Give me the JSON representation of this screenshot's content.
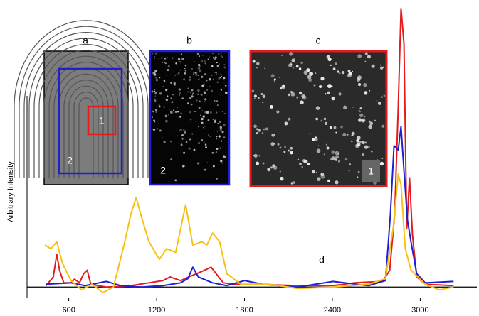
{
  "chart_data": {
    "type": "line",
    "y_label": "Arbitrary Intensity",
    "annotations": [
      "a",
      "b",
      "c",
      "d",
      "1",
      "2",
      "2",
      "1"
    ],
    "xlim": [
      315,
      3387
    ],
    "ylim": [
      -4,
      100
    ],
    "xticks": [
      600,
      1200,
      1800,
      2400,
      3000
    ],
    "series": [
      {
        "color": "#e41a1c",
        "x": [
          445,
          494,
          518,
          537,
          566,
          615,
          639,
          673,
          702,
          726,
          750,
          856,
          1002,
          1147,
          1243,
          1292,
          1364,
          1437,
          1510,
          1572,
          1606,
          1655,
          1727,
          1969,
          2163,
          2405,
          2550,
          2743,
          2792,
          2826,
          2850,
          2869,
          2889,
          2908,
          2927,
          2947,
          2976,
          3034,
          3228
        ],
        "values": [
          0.5,
          3.6,
          11.7,
          6,
          1.5,
          1.5,
          2.8,
          1.5,
          4.8,
          6,
          1,
          0,
          0.3,
          1.5,
          2.3,
          3.6,
          2.3,
          4,
          5.6,
          7.1,
          4.8,
          1.5,
          1,
          0.8,
          0.5,
          0.5,
          1.5,
          2,
          6,
          26.4,
          64.5,
          99.5,
          87,
          21,
          39,
          18.8,
          3.6,
          1,
          0.5
        ]
      },
      {
        "color": "#1f1fd0",
        "x": [
          445,
          615,
          711,
          856,
          953,
          1098,
          1243,
          1364,
          1413,
          1447,
          1485,
          1582,
          1679,
          1800,
          1921,
          2163,
          2405,
          2647,
          2763,
          2797,
          2821,
          2850,
          2869,
          2889,
          2913,
          2937,
          2976,
          3034,
          3228
        ],
        "values": [
          1,
          1.5,
          0.5,
          2,
          0.5,
          0,
          0.5,
          1.5,
          3,
          7.1,
          3.6,
          1.5,
          0.5,
          2.3,
          1,
          0,
          2,
          0.5,
          2.3,
          26.4,
          50.5,
          49,
          57.4,
          41.6,
          23.9,
          16.2,
          4.8,
          1.5,
          2
        ]
      },
      {
        "color": "#f5c211",
        "x": [
          436,
          479,
          518,
          556,
          615,
          687,
          760,
          832,
          905,
          977,
          1026,
          1060,
          1089,
          1147,
          1219,
          1268,
          1330,
          1398,
          1447,
          1510,
          1543,
          1582,
          1630,
          1679,
          1776,
          1969,
          2163,
          2405,
          2647,
          2763,
          2816,
          2850,
          2869,
          2898,
          2937,
          3034,
          3131,
          3228
        ],
        "values": [
          15,
          13.7,
          16.2,
          8.6,
          2.3,
          -1,
          1,
          -2,
          0,
          15,
          26.4,
          32,
          26.4,
          16.2,
          9.9,
          13.7,
          12.4,
          29.4,
          15,
          16.2,
          15,
          19.3,
          16.2,
          4.8,
          1,
          1,
          -0.5,
          0,
          1,
          3,
          21.3,
          40.4,
          36.5,
          13.7,
          6,
          1,
          -1,
          0
        ]
      }
    ]
  }
}
